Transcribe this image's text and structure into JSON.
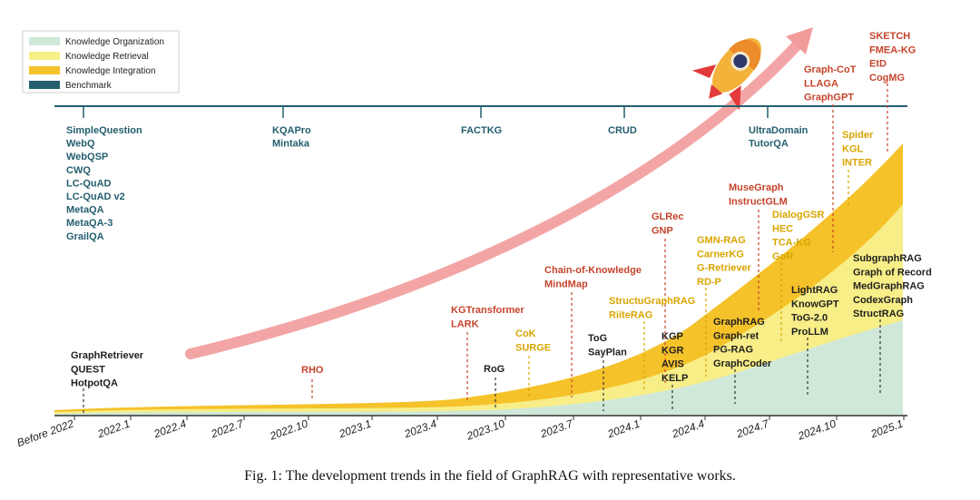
{
  "caption": "Fig. 1: The development trends in the field of GraphRAG with representative works.",
  "colors": {
    "organization": "#cfe8d8",
    "retrieval": "#f8ee88",
    "integration": "#f5c22a",
    "benchmark": "#245f6e",
    "label_red": "#c5442b",
    "label_yellow": "#d9a500",
    "label_dark": "#1f1f1f",
    "label_benchmark": "#245f6e",
    "arrow": "#f29b9b"
  },
  "legend": [
    {
      "key": "organization",
      "label": "Knowledge Organization"
    },
    {
      "key": "retrieval",
      "label": "Knowledge Retrieval"
    },
    {
      "key": "integration",
      "label": "Knowledge Integration"
    },
    {
      "key": "benchmark",
      "label": "Benchmark"
    }
  ],
  "x_ticks": [
    "Before 2022",
    "2022.1",
    "2022.4",
    "2022.7",
    "2022.10",
    "2023.1",
    "2023.4",
    "2023.10",
    "2023.7",
    "2024.1",
    "2024.4",
    "2024.7",
    "2024.10",
    "2025.1"
  ],
  "benchmarks": [
    {
      "id": "b1",
      "lines": [
        "SimpleQuestion",
        "WebQ",
        "WebQSP",
        "CWQ",
        "LC-QuAD",
        "LC-QuAD v2",
        "MetaQA",
        "MetaQA-3",
        "GrailQA"
      ]
    },
    {
      "id": "b2",
      "lines": [
        "KQAPro",
        "Mintaka"
      ]
    },
    {
      "id": "b3",
      "lines": [
        "FACTKG"
      ]
    },
    {
      "id": "b4",
      "lines": [
        "CRUD"
      ]
    },
    {
      "id": "b5",
      "lines": [
        "UltraDomain",
        "TutorQA"
      ]
    }
  ],
  "works": [
    {
      "id": "w1",
      "cat": "dark",
      "lines": [
        "GraphRetriever",
        "QUEST",
        "HotpotQA"
      ]
    },
    {
      "id": "w2",
      "cat": "red",
      "lines": [
        "RHO"
      ]
    },
    {
      "id": "w3",
      "cat": "red",
      "lines": [
        "KGTransformer",
        "LARK"
      ]
    },
    {
      "id": "w4",
      "cat": "dark",
      "lines": [
        "RoG"
      ]
    },
    {
      "id": "w5",
      "cat": "yellow",
      "lines": [
        "CoK",
        "SURGE"
      ]
    },
    {
      "id": "w6",
      "cat": "red",
      "lines": [
        "Chain-of-Knowledge",
        "MindMap"
      ]
    },
    {
      "id": "w7",
      "cat": "dark",
      "lines": [
        "ToG",
        "SayPlan"
      ]
    },
    {
      "id": "w8",
      "cat": "yellow",
      "lines": [
        "StructuGraphRAG",
        "RiiteRAG"
      ]
    },
    {
      "id": "w9",
      "cat": "red",
      "lines": [
        "GLRec",
        "GNP"
      ]
    },
    {
      "id": "w10",
      "cat": "dark",
      "lines": [
        "KGP",
        "KGR",
        "AVIS",
        "KELP"
      ]
    },
    {
      "id": "w11",
      "cat": "yellow",
      "lines": [
        "GMN-RAG",
        "CarnerKG",
        "G-Retriever",
        "RD-P"
      ]
    },
    {
      "id": "w12",
      "cat": "dark",
      "lines": [
        "GraphRAG",
        "Graph-ret",
        "PG-RAG",
        "GraphCoder"
      ]
    },
    {
      "id": "w13",
      "cat": "red",
      "lines": [
        "MuseGraph",
        "InstructGLM"
      ]
    },
    {
      "id": "w14",
      "cat": "yellow",
      "lines": [
        "DialogGSR",
        "HEC",
        "TCA-KG",
        "GoR"
      ]
    },
    {
      "id": "w15",
      "cat": "dark",
      "lines": [
        "LightRAG",
        "KnowGPT",
        "ToG-2.0",
        "ProLLM"
      ]
    },
    {
      "id": "w16",
      "cat": "red",
      "lines": [
        "Graph-CoT",
        "LLAGA",
        "GraphGPT"
      ]
    },
    {
      "id": "w17",
      "cat": "yellow",
      "lines": [
        "Spider",
        "KGL",
        "INTER"
      ]
    },
    {
      "id": "w18",
      "cat": "dark",
      "lines": [
        "SubgraphRAG",
        "Graph of Record",
        "MedGraphRAG",
        "CodexGraph",
        "StructRAG"
      ]
    },
    {
      "id": "w19",
      "cat": "red",
      "lines": [
        "SKETCH",
        "FMEA-KG",
        "EtD",
        "CogMG"
      ]
    }
  ]
}
